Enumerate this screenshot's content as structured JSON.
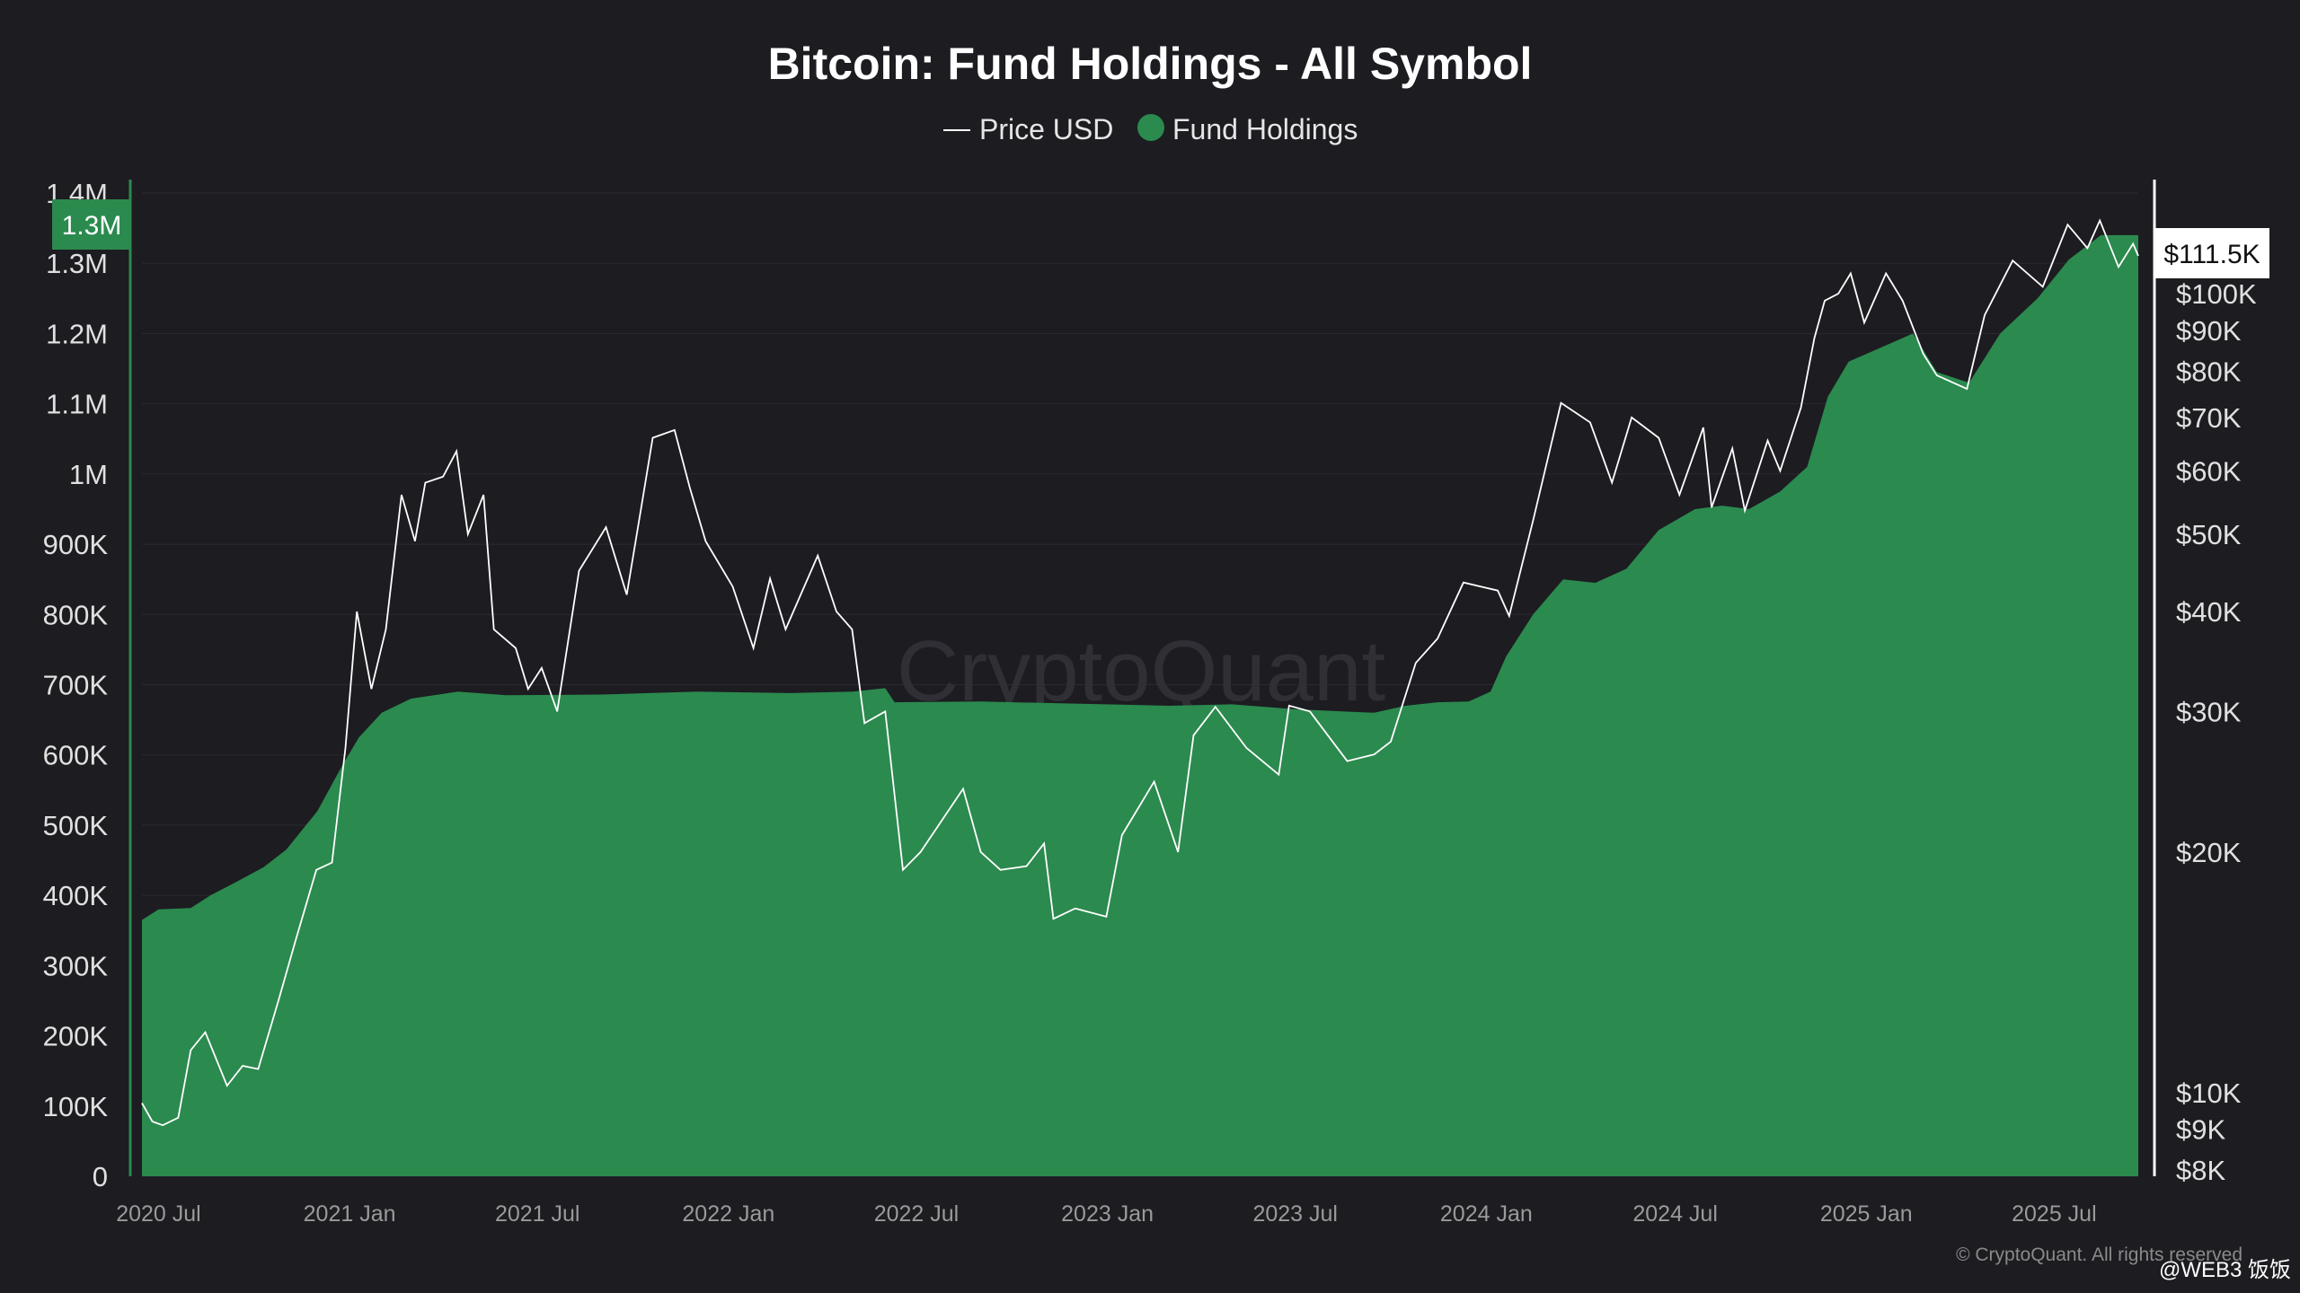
{
  "chart_data": {
    "type": "area",
    "title": "Bitcoin: Fund Holdings - All Symbol",
    "legend": {
      "placement": "top-center",
      "entries": [
        {
          "label": "Price USD",
          "marker": "line",
          "color": "#ffffff"
        },
        {
          "label": "Fund Holdings",
          "marker": "dot",
          "color": "#2b8a4e"
        }
      ]
    },
    "x_ticks": [
      "2020 Jul",
      "2021 Jan",
      "2021 Jul",
      "2022 Jan",
      "2022 Jul",
      "2023 Jan",
      "2023 Jul",
      "2024 Jan",
      "2024 Jul",
      "2025 Jan",
      "2025 Jul"
    ],
    "x_range": [
      "2020-06-15",
      "2025-09-20"
    ],
    "left_axis": {
      "ticks": [
        "0",
        "100K",
        "200K",
        "300K",
        "400K",
        "500K",
        "600K",
        "700K",
        "800K",
        "900K",
        "1M",
        "1.1M",
        "1.2M",
        "1.3M",
        "1.4M"
      ],
      "range": [
        0,
        1400000
      ],
      "current_label": "1.3M",
      "current_value": 1340000
    },
    "right_axis": {
      "scale": "log",
      "ticks": [
        {
          "label": "$8K",
          "value": 8000
        },
        {
          "label": "$9K",
          "value": 9000
        },
        {
          "label": "$10K",
          "value": 10000
        },
        {
          "label": "$20K",
          "value": 20000
        },
        {
          "label": "$30K",
          "value": 30000
        },
        {
          "label": "$40K",
          "value": 40000
        },
        {
          "label": "$50K",
          "value": 50000
        },
        {
          "label": "$60K",
          "value": 60000
        },
        {
          "label": "$70K",
          "value": 70000
        },
        {
          "label": "$80K",
          "value": 80000
        },
        {
          "label": "$90K",
          "value": 90000
        },
        {
          "label": "$100K",
          "value": 100000
        }
      ],
      "current_label": "$111.5K",
      "current_value": 111500
    },
    "grid": true,
    "series": [
      {
        "name": "Fund Holdings",
        "type": "area",
        "color": "#2b8a4e",
        "points": [
          [
            "2020-06-15",
            365000
          ],
          [
            "2020-07-01",
            380000
          ],
          [
            "2020-08-01",
            382000
          ],
          [
            "2020-08-20",
            400000
          ],
          [
            "2020-09-15",
            420000
          ],
          [
            "2020-10-10",
            440000
          ],
          [
            "2020-11-01",
            465000
          ],
          [
            "2020-12-01",
            520000
          ],
          [
            "2020-12-25",
            585000
          ],
          [
            "2021-01-10",
            625000
          ],
          [
            "2021-02-01",
            660000
          ],
          [
            "2021-03-01",
            680000
          ],
          [
            "2021-04-15",
            690000
          ],
          [
            "2021-06-01",
            685000
          ],
          [
            "2021-09-01",
            686000
          ],
          [
            "2021-12-01",
            690000
          ],
          [
            "2022-03-01",
            688000
          ],
          [
            "2022-05-01",
            690000
          ],
          [
            "2022-06-01",
            695000
          ],
          [
            "2022-06-10",
            675000
          ],
          [
            "2022-09-01",
            676000
          ],
          [
            "2022-12-01",
            673000
          ],
          [
            "2023-03-01",
            670000
          ],
          [
            "2023-05-01",
            672000
          ],
          [
            "2023-07-01",
            665000
          ],
          [
            "2023-08-15",
            662000
          ],
          [
            "2023-09-15",
            660000
          ],
          [
            "2023-10-15",
            670000
          ],
          [
            "2023-11-15",
            675000
          ],
          [
            "2023-12-15",
            676000
          ],
          [
            "2024-01-05",
            690000
          ],
          [
            "2024-01-20",
            740000
          ],
          [
            "2024-02-15",
            800000
          ],
          [
            "2024-03-15",
            850000
          ],
          [
            "2024-04-15",
            845000
          ],
          [
            "2024-05-15",
            865000
          ],
          [
            "2024-06-15",
            920000
          ],
          [
            "2024-07-20",
            950000
          ],
          [
            "2024-08-15",
            955000
          ],
          [
            "2024-09-10",
            950000
          ],
          [
            "2024-10-10",
            975000
          ],
          [
            "2024-11-05",
            1010000
          ],
          [
            "2024-11-25",
            1110000
          ],
          [
            "2024-12-15",
            1160000
          ],
          [
            "2025-01-15",
            1180000
          ],
          [
            "2025-02-15",
            1200000
          ],
          [
            "2025-03-10",
            1145000
          ],
          [
            "2025-04-10",
            1130000
          ],
          [
            "2025-05-10",
            1200000
          ],
          [
            "2025-06-15",
            1250000
          ],
          [
            "2025-07-15",
            1305000
          ],
          [
            "2025-08-15",
            1340000
          ],
          [
            "2025-09-20",
            1340000
          ]
        ]
      },
      {
        "name": "Price USD",
        "type": "line",
        "color": "#ffffff",
        "points": [
          [
            "2020-06-15",
            9700
          ],
          [
            "2020-06-25",
            9200
          ],
          [
            "2020-07-05",
            9100
          ],
          [
            "2020-07-20",
            9300
          ],
          [
            "2020-08-01",
            11300
          ],
          [
            "2020-08-15",
            11900
          ],
          [
            "2020-09-05",
            10200
          ],
          [
            "2020-09-20",
            10800
          ],
          [
            "2020-10-05",
            10700
          ],
          [
            "2020-10-25",
            13100
          ],
          [
            "2020-11-10",
            15500
          ],
          [
            "2020-11-30",
            19000
          ],
          [
            "2020-12-15",
            19400
          ],
          [
            "2020-12-28",
            27000
          ],
          [
            "2021-01-08",
            40000
          ],
          [
            "2021-01-22",
            32000
          ],
          [
            "2021-02-05",
            38000
          ],
          [
            "2021-02-20",
            56000
          ],
          [
            "2021-03-05",
            49000
          ],
          [
            "2021-03-15",
            58000
          ],
          [
            "2021-04-01",
            59000
          ],
          [
            "2021-04-14",
            63500
          ],
          [
            "2021-04-25",
            50000
          ],
          [
            "2021-05-10",
            56000
          ],
          [
            "2021-05-20",
            38000
          ],
          [
            "2021-06-10",
            36000
          ],
          [
            "2021-06-22",
            32000
          ],
          [
            "2021-07-05",
            34000
          ],
          [
            "2021-07-20",
            30000
          ],
          [
            "2021-08-10",
            45000
          ],
          [
            "2021-09-05",
            51000
          ],
          [
            "2021-09-25",
            42000
          ],
          [
            "2021-10-10",
            55000
          ],
          [
            "2021-10-20",
            66000
          ],
          [
            "2021-11-10",
            67500
          ],
          [
            "2021-11-25",
            57000
          ],
          [
            "2021-12-10",
            49000
          ],
          [
            "2022-01-05",
            43000
          ],
          [
            "2022-01-25",
            36000
          ],
          [
            "2022-02-10",
            44000
          ],
          [
            "2022-02-25",
            38000
          ],
          [
            "2022-03-28",
            47000
          ],
          [
            "2022-04-15",
            40000
          ],
          [
            "2022-04-30",
            38000
          ],
          [
            "2022-05-12",
            29000
          ],
          [
            "2022-06-01",
            30000
          ],
          [
            "2022-06-18",
            19000
          ],
          [
            "2022-07-05",
            20000
          ],
          [
            "2022-08-15",
            24000
          ],
          [
            "2022-09-01",
            20000
          ],
          [
            "2022-09-20",
            19000
          ],
          [
            "2022-10-15",
            19200
          ],
          [
            "2022-11-01",
            20500
          ],
          [
            "2022-11-10",
            16500
          ],
          [
            "2022-12-01",
            17000
          ],
          [
            "2022-12-31",
            16600
          ],
          [
            "2023-01-15",
            21000
          ],
          [
            "2023-02-15",
            24500
          ],
          [
            "2023-03-10",
            20000
          ],
          [
            "2023-03-25",
            28000
          ],
          [
            "2023-04-15",
            30400
          ],
          [
            "2023-05-15",
            27000
          ],
          [
            "2023-06-15",
            25000
          ],
          [
            "2023-06-25",
            30500
          ],
          [
            "2023-07-15",
            30000
          ],
          [
            "2023-08-20",
            26000
          ],
          [
            "2023-09-15",
            26500
          ],
          [
            "2023-10-01",
            27500
          ],
          [
            "2023-10-25",
            34500
          ],
          [
            "2023-11-15",
            37000
          ],
          [
            "2023-12-10",
            43500
          ],
          [
            "2024-01-12",
            42500
          ],
          [
            "2024-01-23",
            39500
          ],
          [
            "2024-02-15",
            52000
          ],
          [
            "2024-03-13",
            73000
          ],
          [
            "2024-04-10",
            69000
          ],
          [
            "2024-05-01",
            58000
          ],
          [
            "2024-05-20",
            70000
          ],
          [
            "2024-06-15",
            66000
          ],
          [
            "2024-07-05",
            56000
          ],
          [
            "2024-07-28",
            68000
          ],
          [
            "2024-08-05",
            54000
          ],
          [
            "2024-08-25",
            64000
          ],
          [
            "2024-09-06",
            53500
          ],
          [
            "2024-09-28",
            65500
          ],
          [
            "2024-10-10",
            60000
          ],
          [
            "2024-10-30",
            72000
          ],
          [
            "2024-11-12",
            88000
          ],
          [
            "2024-11-22",
            98000
          ],
          [
            "2024-12-05",
            100000
          ],
          [
            "2024-12-17",
            106000
          ],
          [
            "2024-12-30",
            92000
          ],
          [
            "2025-01-20",
            106000
          ],
          [
            "2025-02-05",
            98000
          ],
          [
            "2025-02-25",
            84000
          ],
          [
            "2025-03-10",
            79000
          ],
          [
            "2025-04-08",
            76000
          ],
          [
            "2025-04-25",
            94000
          ],
          [
            "2025-05-22",
            110000
          ],
          [
            "2025-06-20",
            102000
          ],
          [
            "2025-07-14",
            122000
          ],
          [
            "2025-08-02",
            114000
          ],
          [
            "2025-08-14",
            123500
          ],
          [
            "2025-09-01",
            108000
          ],
          [
            "2025-09-15",
            115500
          ],
          [
            "2025-09-20",
            111500
          ]
        ]
      }
    ]
  },
  "watermark": "CryptoQuant",
  "credit": "© CryptoQuant. All rights reserved",
  "credit_overlay": "@WEB3 饭饭"
}
